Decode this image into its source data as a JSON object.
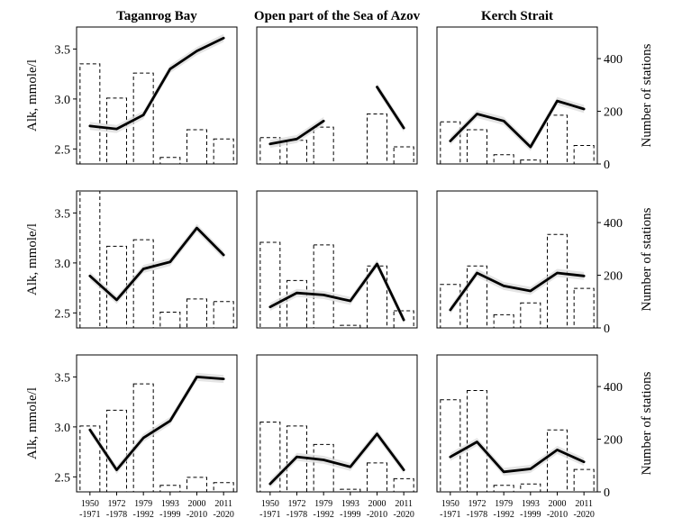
{
  "chart_data": {
    "type": "line",
    "column_titles": [
      "Taganrog Bay",
      "Open part of the Sea of Azov",
      "Kerch Strait"
    ],
    "ylabel_left": "Alk, mmole/l",
    "ylabel_right": "Number of stations",
    "ylim_left": [
      2.35,
      3.72
    ],
    "ylim_right": [
      0,
      520
    ],
    "yticks_left": [
      "2.5",
      "3.0",
      "3.5"
    ],
    "yticks_right": [
      "0",
      "200",
      "400"
    ],
    "categories": [
      "1950 -1971",
      "1972 -1978",
      "1979 -1992",
      "1993 -1999",
      "2000 -2010",
      "2011 -2020"
    ],
    "panels": [
      {
        "row": 0,
        "col": 0,
        "bars": [
          380,
          250,
          345,
          25,
          130,
          95
        ],
        "line": [
          {
            "x": [
              0,
              1,
              2,
              3,
              4,
              5
            ],
            "y": [
              2.73,
              2.7,
              2.84,
              3.3,
              3.48,
              3.61
            ]
          }
        ]
      },
      {
        "row": 0,
        "col": 1,
        "bars": [
          100,
          90,
          140,
          0,
          190,
          65
        ],
        "line": [
          {
            "x": [
              0,
              1,
              2
            ],
            "y": [
              2.55,
              2.6,
              2.78
            ]
          },
          {
            "x": [
              4,
              5
            ],
            "y": [
              3.12,
              2.71
            ]
          }
        ]
      },
      {
        "row": 0,
        "col": 2,
        "bars": [
          160,
          130,
          35,
          15,
          185,
          70
        ],
        "line": [
          {
            "x": [
              0,
              1,
              2,
              3,
              4,
              5
            ],
            "y": [
              2.58,
              2.85,
              2.78,
              2.52,
              2.98,
              2.9
            ]
          }
        ]
      },
      {
        "row": 1,
        "col": 0,
        "bars": [
          520,
          310,
          335,
          60,
          110,
          100
        ],
        "line": [
          {
            "x": [
              0,
              1,
              2,
              3,
              4,
              5
            ],
            "y": [
              2.87,
              2.63,
              2.94,
              3.01,
              3.35,
              3.08
            ]
          }
        ]
      },
      {
        "row": 1,
        "col": 1,
        "bars": [
          325,
          180,
          315,
          10,
          235,
          65
        ],
        "line": [
          {
            "x": [
              0,
              1,
              2,
              3,
              4,
              5
            ],
            "y": [
              2.56,
              2.7,
              2.68,
              2.62,
              2.99,
              2.43
            ]
          }
        ]
      },
      {
        "row": 1,
        "col": 2,
        "bars": [
          165,
          235,
          50,
          95,
          355,
          150
        ],
        "line": [
          {
            "x": [
              0,
              1,
              2,
              3,
              4,
              5
            ],
            "y": [
              2.53,
              2.9,
              2.77,
              2.72,
              2.9,
              2.87
            ]
          }
        ]
      },
      {
        "row": 2,
        "col": 0,
        "bars": [
          250,
          310,
          410,
          25,
          55,
          35
        ],
        "line": [
          {
            "x": [
              0,
              1,
              2,
              3,
              4,
              5
            ],
            "y": [
              2.97,
              2.57,
              2.89,
              3.06,
              3.5,
              3.48
            ]
          }
        ]
      },
      {
        "row": 2,
        "col": 1,
        "bars": [
          265,
          250,
          180,
          10,
          110,
          50
        ],
        "line": [
          {
            "x": [
              0,
              1,
              2,
              3,
              4,
              5
            ],
            "y": [
              2.43,
              2.7,
              2.67,
              2.6,
              2.93,
              2.57
            ]
          }
        ]
      },
      {
        "row": 2,
        "col": 2,
        "bars": [
          350,
          385,
          25,
          30,
          235,
          85
        ],
        "line": [
          {
            "x": [
              0,
              1,
              2,
              3,
              4,
              5
            ],
            "y": [
              2.7,
              2.85,
              2.55,
              2.58,
              2.77,
              2.65
            ]
          }
        ]
      }
    ],
    "legend": "none",
    "grid": false
  }
}
